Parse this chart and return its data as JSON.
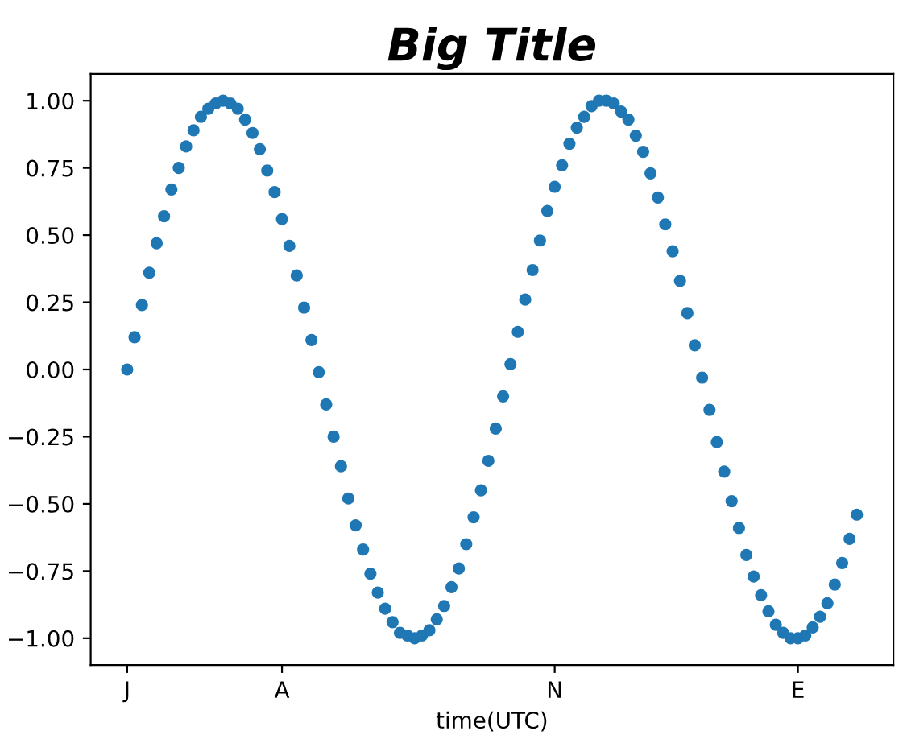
{
  "chart_data": {
    "type": "scatter",
    "title": "Big Title",
    "xlabel": "time(UTC)",
    "categories": [
      "J",
      null,
      null,
      null,
      null,
      null,
      null,
      null,
      null,
      null,
      null,
      null,
      null,
      null,
      null,
      null,
      null,
      null,
      null,
      null,
      null,
      "A",
      null,
      null,
      null,
      null,
      null,
      null,
      null,
      null,
      null,
      null,
      null,
      null,
      null,
      null,
      null,
      null,
      null,
      null,
      null,
      null,
      null,
      null,
      null,
      null,
      null,
      null,
      null,
      null,
      null,
      null,
      null,
      null,
      null,
      null,
      null,
      null,
      "N",
      null,
      null,
      null,
      null,
      null,
      null,
      null,
      null,
      null,
      null,
      null,
      null,
      null,
      null,
      null,
      null,
      null,
      null,
      null,
      null,
      null,
      null,
      null,
      null,
      null,
      null,
      null,
      null,
      null,
      null,
      null,
      null,
      "E",
      null,
      null,
      null,
      null,
      null,
      null,
      null,
      null
    ],
    "series": [
      {
        "color": "#1f77b4",
        "values": [
          0,
          0.12,
          0.24,
          0.36,
          0.47,
          0.57,
          0.67,
          0.75,
          0.83,
          0.89,
          0.94,
          0.97,
          0.99,
          1,
          0.99,
          0.97,
          0.93,
          0.88,
          0.82,
          0.74,
          0.66,
          0.56,
          0.46,
          0.35,
          0.23,
          0.11,
          -0.01,
          -0.13,
          -0.25,
          -0.36,
          -0.48,
          -0.58,
          -0.67,
          -0.76,
          -0.83,
          -0.89,
          -0.94,
          -0.98,
          -0.99,
          -1,
          -0.99,
          -0.97,
          -0.93,
          -0.88,
          -0.81,
          -0.74,
          -0.65,
          -0.55,
          -0.45,
          -0.34,
          -0.22,
          -0.1,
          0.02,
          0.14,
          0.26,
          0.37,
          0.48,
          0.59,
          0.68,
          0.76,
          0.84,
          0.9,
          0.94,
          0.98,
          1,
          1,
          0.99,
          0.96,
          0.93,
          0.87,
          0.81,
          0.73,
          0.64,
          0.54,
          0.44,
          0.33,
          0.21,
          0.09,
          -0.03,
          -0.15,
          -0.27,
          -0.38,
          -0.49,
          -0.59,
          -0.69,
          -0.77,
          -0.84,
          -0.9,
          -0.95,
          -0.98,
          -1,
          -1,
          -0.99,
          -0.96,
          -0.92,
          -0.87,
          -0.8,
          -0.72,
          -0.63,
          -0.54
        ]
      }
    ],
    "ylim": [
      -1.1,
      1.1
    ],
    "yticks": [
      {
        "value": -1,
        "label": "−1.00"
      },
      {
        "value": -0.75,
        "label": "−0.75"
      },
      {
        "value": -0.5,
        "label": "−0.50"
      },
      {
        "value": -0.25,
        "label": "−0.25"
      },
      {
        "value": 0,
        "label": "0.00"
      },
      {
        "value": 0.25,
        "label": "0.25"
      },
      {
        "value": 0.5,
        "label": "0.50"
      },
      {
        "value": 0.75,
        "label": "0.75"
      },
      {
        "value": 1,
        "label": "1.00"
      }
    ],
    "marker": "circle",
    "grid": false,
    "legend": false
  }
}
